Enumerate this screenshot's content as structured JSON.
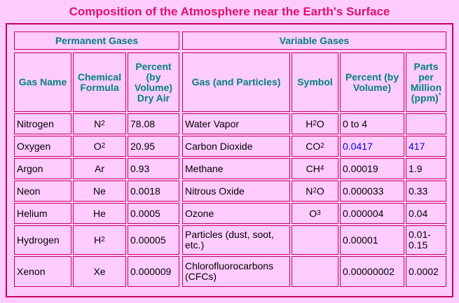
{
  "title": "Composition of the Atmosphere near the Earth's Surface",
  "groups": {
    "permanent": "Permanent Gases",
    "variable": "Variable Gases"
  },
  "headers": {
    "gas_name": "Gas Name",
    "chemical_formula": "Chemical Formula",
    "percent_dry_air": "Percent (by Volume) Dry Air",
    "gas_particles": "Gas (and Particles)",
    "symbol": "Symbol",
    "percent_volume": "Percent (by Volume)",
    "ppm": "Parts per Million (ppm)",
    "ppm_footnote_mark": "*"
  },
  "rows": [
    {
      "gas": "Nitrogen",
      "formula_base": "N",
      "formula_sub": "2",
      "pct": "78.08",
      "vgas": "Water Vapor",
      "sym_base": "H",
      "sym_sub": "2",
      "sym_tail": "O",
      "vpct": "0 to 4",
      "ppm": ""
    },
    {
      "gas": "Oxygen",
      "formula_base": "O",
      "formula_sub": "2",
      "pct": "20.95",
      "vgas": "Carbon Dioxide",
      "sym_base": "CO",
      "sym_sub": "2",
      "sym_tail": "",
      "vpct": "0.0417",
      "ppm": "417"
    },
    {
      "gas": "Argon",
      "formula_base": "Ar",
      "formula_sub": "",
      "pct": "0.93",
      "vgas": "Methane",
      "sym_base": "CH",
      "sym_sub": "4",
      "sym_tail": "",
      "vpct": "0.00019",
      "ppm": "1.9"
    },
    {
      "gas": "Neon",
      "formula_base": "Ne",
      "formula_sub": "",
      "pct": "0.0018",
      "vgas": "Nitrous Oxide",
      "sym_base": "N",
      "sym_sub": "2",
      "sym_tail": "O",
      "vpct": "0.000033",
      "ppm": "0.33"
    },
    {
      "gas": "Helium",
      "formula_base": "He",
      "formula_sub": "",
      "pct": "0.0005",
      "vgas": "Ozone",
      "sym_base": "O",
      "sym_sub": "3",
      "sym_tail": "",
      "vpct": "0.000004",
      "ppm": "0.04"
    },
    {
      "gas": "Hydrogen",
      "formula_base": "H",
      "formula_sub": "2",
      "pct": "0.00005",
      "vgas": "Particles (dust, soot, etc.)",
      "sym_base": "",
      "sym_sub": "",
      "sym_tail": "",
      "vpct": "0.00001",
      "ppm": "0.01-0.15"
    },
    {
      "gas": "Xenon",
      "formula_base": "Xe",
      "formula_sub": "",
      "pct": "0.000009",
      "vgas": "Chlorofluorocarbons (CFCs)",
      "sym_base": "",
      "sym_sub": "",
      "sym_tail": "",
      "vpct": "0.00000002",
      "ppm": "0.0002"
    }
  ],
  "colors": {
    "title": "#e0106a",
    "header": "#008080",
    "border": "#c8005a",
    "background": "#ffccff",
    "link": "#0000dd"
  }
}
